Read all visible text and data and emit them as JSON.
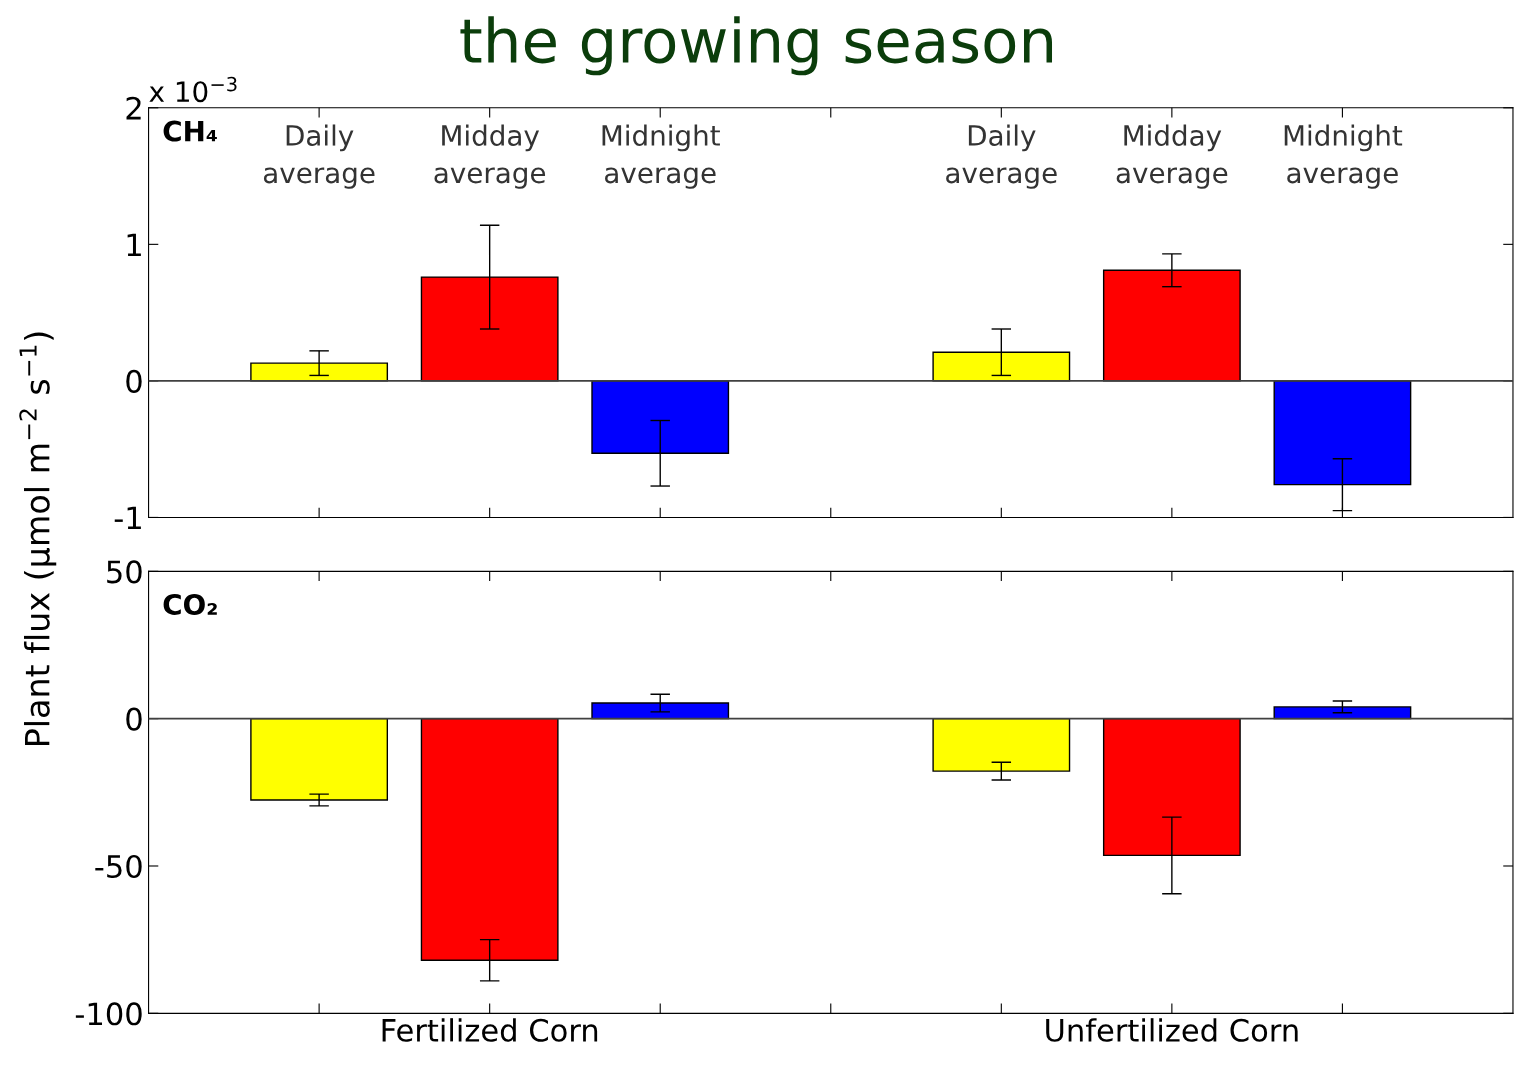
{
  "chart_data": [
    {
      "type": "bar",
      "title": "the growing season",
      "ylabel": "Plant flux (µmol m$^{−2}$ s$^{−1}$)",
      "annotations": [
        "x 10$^{−3}$",
        "CH₄"
      ],
      "categories": [
        null,
        null,
        null,
        null,
        null,
        null,
        null
      ],
      "series": [
        {
          "name": "Daily average",
          "color": "#ffff00",
          "values": [
            0.13,
            null,
            null,
            null,
            0.21,
            null,
            null
          ],
          "errors": [
            0.09,
            null,
            null,
            null,
            0.17,
            null,
            null
          ]
        },
        {
          "name": "Midday average",
          "color": "#ff0000",
          "values": [
            null,
            0.76,
            null,
            null,
            null,
            0.81,
            null
          ],
          "errors": [
            null,
            0.38,
            null,
            null,
            null,
            0.12,
            null
          ]
        },
        {
          "name": "Midnight average",
          "color": "#0000ff",
          "values": [
            null,
            null,
            -0.53,
            null,
            null,
            null,
            -0.76
          ],
          "errors": [
            null,
            null,
            0.24,
            null,
            null,
            null,
            0.19
          ]
        }
      ],
      "ylim": [
        -1,
        2
      ],
      "yticks": [
        -1,
        0,
        1,
        2
      ],
      "tick_labels": "y",
      "grid": false,
      "legend": "top",
      "ref_lines": [
        {
          "axis": "y",
          "value": 0,
          "color": "#404040"
        }
      ]
    },
    {
      "type": "bar",
      "annotations": [
        "CO₂"
      ],
      "categories": [
        null,
        "Fertilized Corn",
        null,
        null,
        null,
        "Unfertilized Corn",
        null
      ],
      "series": [
        {
          "color": "#ffff00",
          "values": [
            -27.6,
            null,
            null,
            null,
            -17.8,
            null,
            null
          ],
          "errors": [
            2,
            null,
            null,
            null,
            3,
            null,
            null
          ]
        },
        {
          "color": "#ff0000",
          "values": [
            null,
            -82,
            null,
            null,
            null,
            -46.4,
            null
          ],
          "errors": [
            null,
            7,
            null,
            null,
            null,
            13,
            null
          ]
        },
        {
          "color": "#0000ff",
          "values": [
            null,
            null,
            5.3,
            null,
            null,
            null,
            4
          ],
          "errors": [
            null,
            null,
            3,
            null,
            null,
            null,
            2
          ]
        }
      ],
      "ylim": [
        -100,
        50
      ],
      "yticks": [
        -100,
        -50,
        0,
        50
      ],
      "grid": false,
      "ref_lines": [
        {
          "axis": "y",
          "value": 0,
          "color": "#404040"
        }
      ]
    }
  ]
}
